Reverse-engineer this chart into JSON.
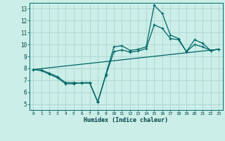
{
  "xlabel": "Humidex (Indice chaleur)",
  "background_color": "#cceee8",
  "grid_color": "#aad4ce",
  "line_color": "#006666",
  "xlim": [
    -0.5,
    23.5
  ],
  "ylim": [
    4.5,
    13.5
  ],
  "xticks": [
    0,
    1,
    2,
    3,
    4,
    5,
    6,
    7,
    8,
    9,
    10,
    11,
    12,
    13,
    14,
    15,
    16,
    17,
    18,
    19,
    20,
    21,
    22,
    23
  ],
  "yticks": [
    5,
    6,
    7,
    8,
    9,
    10,
    11,
    12,
    13
  ],
  "line1_x": [
    0,
    1,
    2,
    3,
    4,
    5,
    6,
    7,
    8,
    9,
    10,
    11,
    12,
    13,
    14,
    15,
    16,
    17,
    18,
    19,
    20,
    21,
    22,
    23
  ],
  "line1_y": [
    7.9,
    7.8,
    7.5,
    7.2,
    6.7,
    6.7,
    6.8,
    6.8,
    5.2,
    7.5,
    9.8,
    9.9,
    9.5,
    9.6,
    9.8,
    13.3,
    12.6,
    10.8,
    10.5,
    9.4,
    10.4,
    10.1,
    9.5,
    9.6
  ],
  "line2_x": [
    0,
    1,
    2,
    3,
    4,
    5,
    6,
    7,
    8,
    9,
    10,
    11,
    12,
    13,
    14,
    15,
    16,
    17,
    18,
    19,
    20,
    21,
    22,
    23
  ],
  "line2_y": [
    7.9,
    7.85,
    7.6,
    7.3,
    6.8,
    6.8,
    6.75,
    6.75,
    5.15,
    7.4,
    9.4,
    9.55,
    9.35,
    9.45,
    9.65,
    11.65,
    11.35,
    10.5,
    10.4,
    9.4,
    10.0,
    9.8,
    9.5,
    9.6
  ],
  "line3_x": [
    0,
    23
  ],
  "line3_y": [
    7.9,
    9.6
  ]
}
